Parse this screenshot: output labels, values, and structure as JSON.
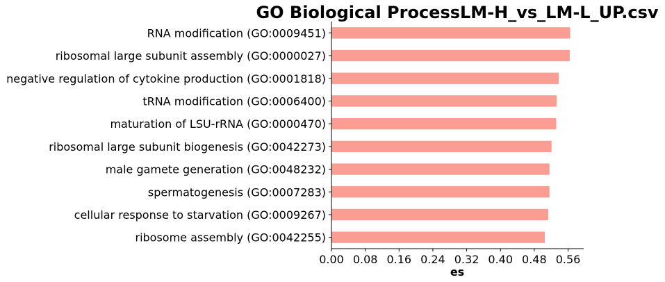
{
  "chart_data": {
    "type": "bar",
    "orientation": "horizontal",
    "title": "GO Biological ProcessLM-H_vs_LM-L_UP.csv",
    "xlabel": "es",
    "ylabel": "",
    "categories": [
      "RNA modification (GO:0009451)",
      "ribosomal large subunit assembly (GO:0000027)",
      "negative regulation of cytokine production (GO:0001818)",
      "tRNA modification (GO:0006400)",
      "maturation of LSU-rRNA (GO:0000470)",
      "ribosomal large subunit biogenesis (GO:0042273)",
      "male gamete generation (GO:0048232)",
      "spermatogenesis (GO:0007283)",
      "cellular response to starvation (GO:0009267)",
      "ribosome assembly (GO:0042255)"
    ],
    "values": [
      0.565,
      0.564,
      0.538,
      0.533,
      0.532,
      0.521,
      0.516,
      0.516,
      0.513,
      0.505
    ],
    "xlim": [
      0.0,
      0.597
    ],
    "xticks": [
      0.0,
      0.08,
      0.16,
      0.24,
      0.32,
      0.4,
      0.48,
      0.56
    ],
    "xtick_labels": [
      "0.00",
      "0.08",
      "0.16",
      "0.24",
      "0.32",
      "0.40",
      "0.48",
      "0.56"
    ],
    "bar_color": "#fa9e93",
    "grid": false,
    "legend": "none"
  }
}
